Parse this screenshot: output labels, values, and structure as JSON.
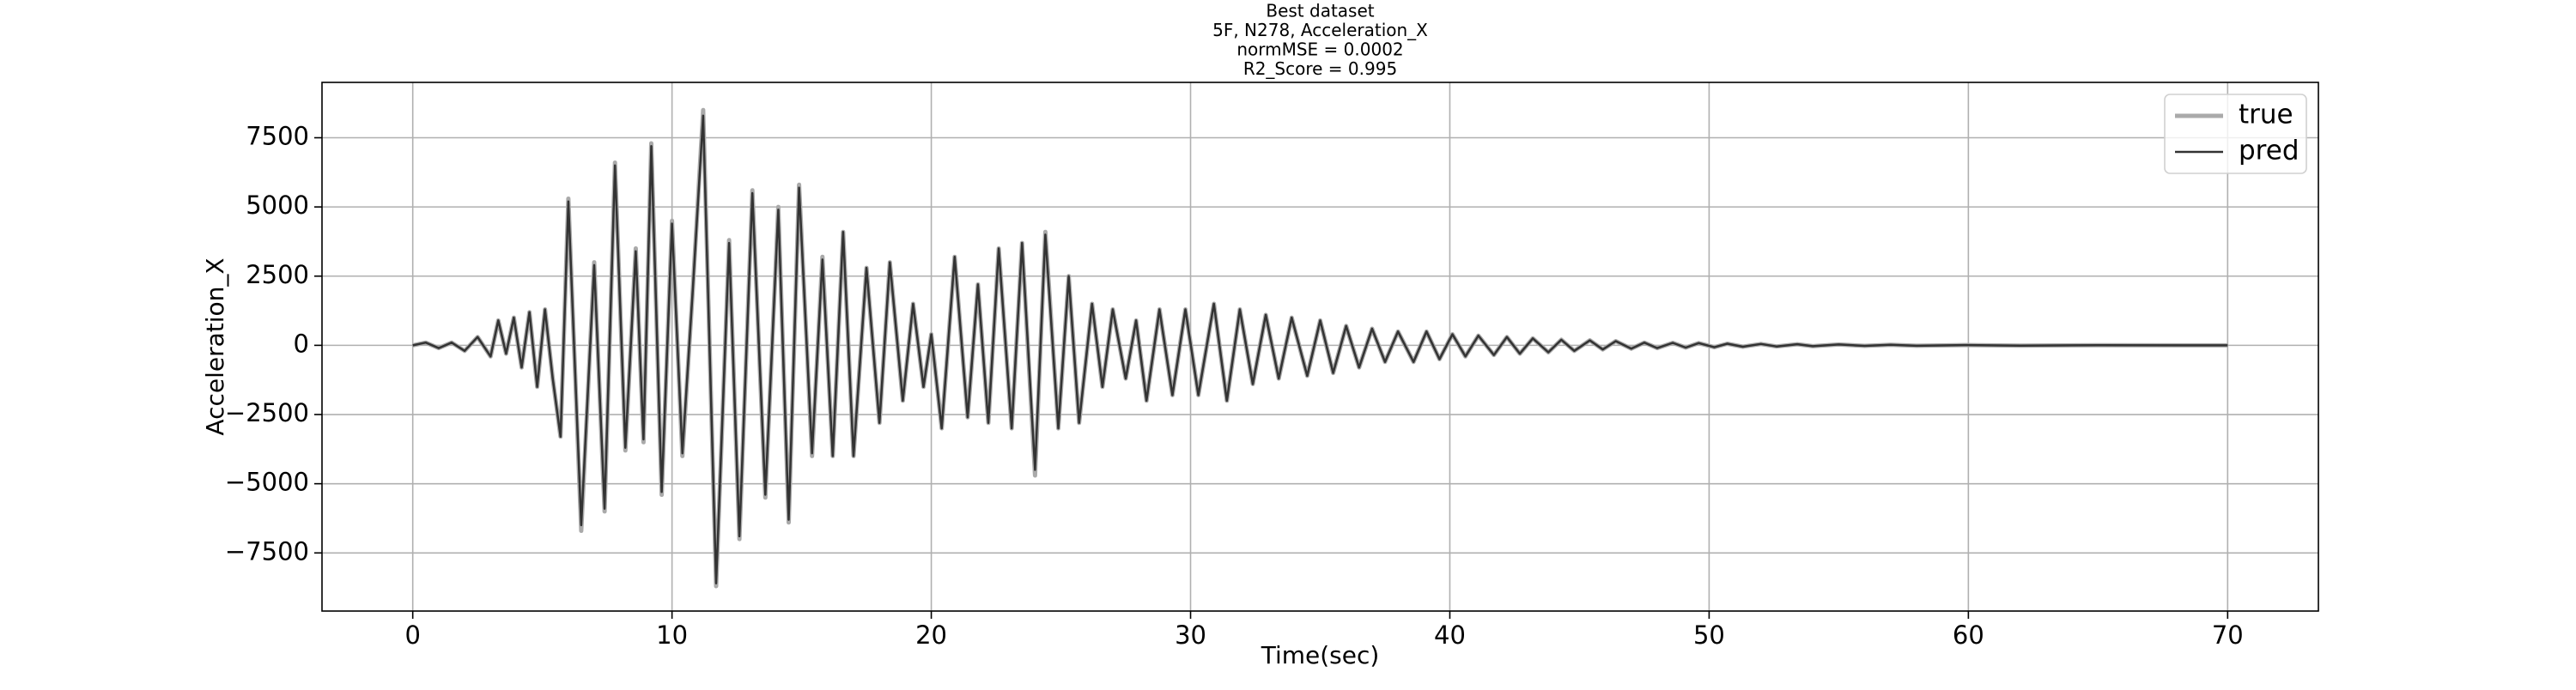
{
  "chart_data": {
    "type": "line",
    "title": [
      "Best dataset",
      "5F, N278, Acceleration_X",
      "normMSE = 0.0002",
      "R2_Score = 0.995"
    ],
    "x_label": "Time(sec)",
    "y_label": "Acceleration_X",
    "x": [
      0,
      0.5,
      1,
      1.5,
      2,
      2.5,
      3,
      3.3,
      3.6,
      3.9,
      4.2,
      4.5,
      4.8,
      5.1,
      5.4,
      5.7,
      6.0,
      6.5,
      7.0,
      7.4,
      7.8,
      8.2,
      8.6,
      8.9,
      9.2,
      9.6,
      10.0,
      10.4,
      10.8,
      11.2,
      11.7,
      12.2,
      12.6,
      13.1,
      13.6,
      14.1,
      14.5,
      14.9,
      15.4,
      15.8,
      16.2,
      16.6,
      17.0,
      17.5,
      18.0,
      18.4,
      18.9,
      19.3,
      19.7,
      20.0,
      20.4,
      20.9,
      21.4,
      21.8,
      22.2,
      22.6,
      23.1,
      23.5,
      24.0,
      24.4,
      24.9,
      25.3,
      25.7,
      26.2,
      26.6,
      27.0,
      27.5,
      27.9,
      28.3,
      28.8,
      29.3,
      29.8,
      30.3,
      30.9,
      31.4,
      31.9,
      32.4,
      32.9,
      33.4,
      33.9,
      34.5,
      35.0,
      35.5,
      36.0,
      36.5,
      37.0,
      37.5,
      38.0,
      38.6,
      39.1,
      39.6,
      40.1,
      40.6,
      41.1,
      41.7,
      42.2,
      42.7,
      43.2,
      43.8,
      44.3,
      44.8,
      45.4,
      45.9,
      46.4,
      47.0,
      47.5,
      48.0,
      48.6,
      49.1,
      49.6,
      50.2,
      50.7,
      51.3,
      52,
      52.6,
      53.4,
      54,
      55,
      56,
      57,
      58,
      60,
      62,
      65,
      70
    ],
    "series": [
      {
        "name": "true",
        "color": "#aaaaaa",
        "width": 5,
        "values": [
          0,
          100,
          -100,
          100,
          -200,
          300,
          -400,
          900,
          -300,
          1000,
          -800,
          1200,
          -1500,
          1300,
          -1200,
          -3300,
          5300,
          -6700,
          3000,
          -6000,
          6600,
          -3800,
          3500,
          -3500,
          7300,
          -5400,
          4500,
          -4000,
          2000,
          8500,
          -8700,
          3800,
          -7000,
          5600,
          -5500,
          5000,
          -6400,
          5800,
          -4000,
          3200,
          -4000,
          4100,
          -4000,
          2800,
          -2800,
          3000,
          -2000,
          1500,
          -1500,
          400,
          -3000,
          3200,
          -2600,
          2200,
          -2800,
          3500,
          -3000,
          3700,
          -4700,
          4100,
          -3000,
          2500,
          -2800,
          1500,
          -1500,
          1300,
          -1200,
          900,
          -2000,
          1300,
          -1800,
          1300,
          -1800,
          1500,
          -2000,
          1300,
          -1400,
          1100,
          -1200,
          1000,
          -1100,
          900,
          -1000,
          700,
          -800,
          600,
          -600,
          500,
          -600,
          500,
          -500,
          400,
          -400,
          350,
          -350,
          300,
          -300,
          250,
          -250,
          200,
          -200,
          180,
          -150,
          150,
          -120,
          100,
          -100,
          90,
          -80,
          80,
          -70,
          60,
          -50,
          50,
          -40,
          40,
          -30,
          30,
          -20,
          20,
          -15,
          10,
          -10,
          5,
          0
        ]
      },
      {
        "name": "pred",
        "color": "#333333",
        "width": 2.5,
        "values": [
          0,
          100,
          -100,
          100,
          -200,
          300,
          -400,
          900,
          -300,
          1000,
          -800,
          1200,
          -1500,
          1300,
          -1200,
          -3300,
          5200,
          -6500,
          2900,
          -5900,
          6500,
          -3700,
          3400,
          -3400,
          7200,
          -5300,
          4400,
          -3900,
          2000,
          8300,
          -8600,
          3700,
          -6900,
          5500,
          -5400,
          4900,
          -6300,
          5700,
          -3900,
          3100,
          -4000,
          4100,
          -4000,
          2800,
          -2800,
          3000,
          -2000,
          1500,
          -1500,
          400,
          -3000,
          3200,
          -2600,
          2200,
          -2800,
          3500,
          -3000,
          3700,
          -4500,
          4000,
          -3000,
          2500,
          -2800,
          1500,
          -1500,
          1300,
          -1200,
          900,
          -2000,
          1300,
          -1800,
          1300,
          -1800,
          1500,
          -2000,
          1300,
          -1400,
          1100,
          -1200,
          1000,
          -1100,
          900,
          -1000,
          700,
          -800,
          600,
          -600,
          500,
          -600,
          500,
          -500,
          400,
          -400,
          350,
          -350,
          300,
          -300,
          250,
          -250,
          200,
          -200,
          180,
          -150,
          150,
          -120,
          100,
          -100,
          90,
          -80,
          80,
          -70,
          60,
          -50,
          50,
          -40,
          40,
          -30,
          30,
          -20,
          20,
          -15,
          10,
          -10,
          5,
          0
        ]
      }
    ],
    "xlim": [
      -3.5,
      73.5
    ],
    "ylim": [
      -9600,
      9500
    ],
    "xticks": [
      0,
      10,
      20,
      30,
      40,
      50,
      60,
      70
    ],
    "yticks": [
      {
        "value": -7500,
        "label": "−7500"
      },
      {
        "value": -5000,
        "label": "−5000"
      },
      {
        "value": -2500,
        "label": "−2500"
      },
      0,
      2500,
      5000,
      7500
    ],
    "grid": true,
    "legend": "upper right"
  }
}
